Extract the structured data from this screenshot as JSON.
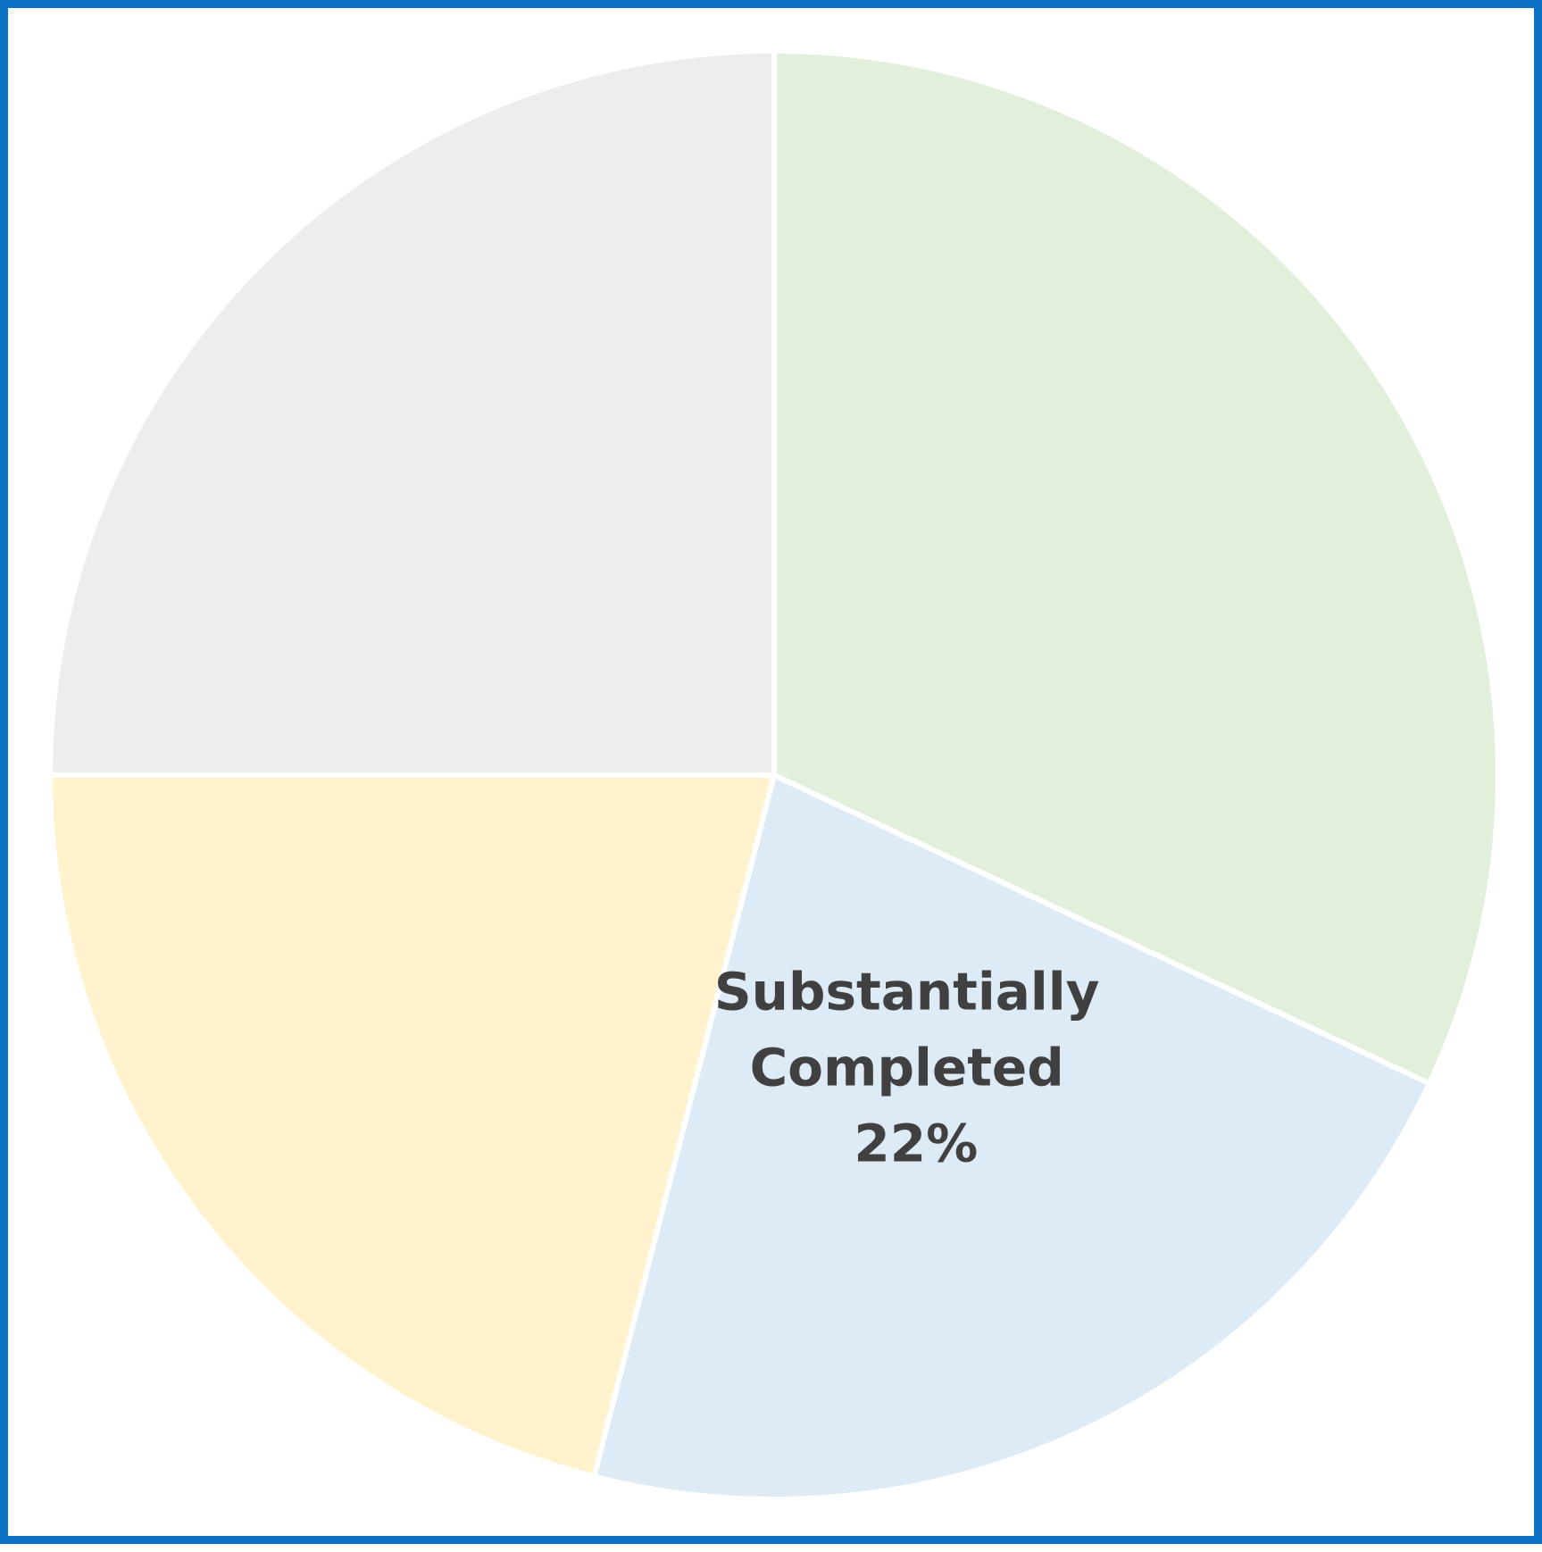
{
  "chart_data": {
    "type": "pie",
    "start_angle_deg": 0,
    "direction": "clockwise",
    "slices": [
      {
        "key": "green",
        "label": "",
        "value": 32,
        "percent_label": "",
        "color": "#E2EFDA"
      },
      {
        "key": "blue",
        "label": "Substantially Completed",
        "value": 22,
        "percent_label": "22%",
        "color": "#DDEBF7"
      },
      {
        "key": "yellow",
        "label": "",
        "value": 21,
        "percent_label": "",
        "color": "#FFF2CC"
      },
      {
        "key": "gray",
        "label": "",
        "value": 25,
        "percent_label": "",
        "color": "#EDEDED"
      }
    ],
    "label_lines": {
      "line1": "Substantially",
      "line2": "Completed",
      "line3": "22%"
    },
    "frame_color": "#0B72C4"
  }
}
